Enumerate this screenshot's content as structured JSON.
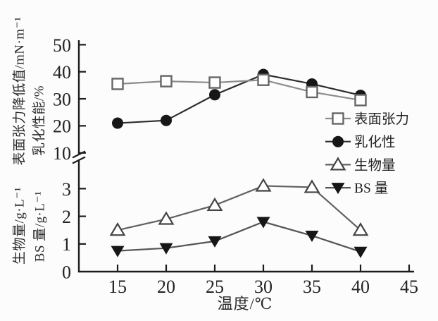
{
  "figure": {
    "background": "#fcfcfc",
    "axis_color": "#1c1c1c",
    "text_color": "#222222",
    "y_axis_labels": {
      "outer_top": "表面张力降低值/mN·m⁻¹",
      "inner_top": "乳化性能/%",
      "outer_bottom": "生物量/g·L⁻¹",
      "inner_bottom": "BS 量/g·L⁻¹"
    },
    "x_axis_label": "温度/℃"
  },
  "chart_data": {
    "type": "line",
    "title": "",
    "xlabel": "温度/℃",
    "ylabel_top": "表面张力降低值/mN·m⁻¹ ; 乳化性能/%",
    "ylabel_bottom": "生物量/g·L⁻¹ ; BS 量/g·L⁻¹",
    "x": [
      15,
      20,
      25,
      30,
      35,
      40
    ],
    "x_ticks": [
      15,
      20,
      25,
      30,
      35,
      40,
      45
    ],
    "x_range": [
      11,
      45.5
    ],
    "axis_break": true,
    "grid": false,
    "legend_position": "right-middle",
    "top_axis": {
      "ticks": [
        10,
        20,
        30,
        40,
        50
      ],
      "range": [
        10,
        50
      ]
    },
    "bottom_axis": {
      "ticks": [
        0,
        1,
        2,
        3
      ],
      "range": [
        0,
        3.3
      ]
    },
    "series": [
      {
        "id": "surface-tension",
        "name": "表面张力",
        "axis": "top",
        "marker": "square-open",
        "line_color": "#8c8c8c",
        "marker_color": "#666666",
        "values": [
          35.5,
          36.5,
          36,
          37,
          32.5,
          29.5
        ]
      },
      {
        "id": "emulsification",
        "name": "乳化性",
        "axis": "top",
        "marker": "circle-filled",
        "line_color": "#2e2e2e",
        "marker_color": "#171717",
        "values": [
          21,
          22,
          31.5,
          39,
          35.5,
          31.3
        ]
      },
      {
        "id": "biomass",
        "name": "生物量",
        "axis": "bottom",
        "marker": "triangle-up-open",
        "line_color": "#606060",
        "marker_color": "#444444",
        "values": [
          1.5,
          1.9,
          2.4,
          3.1,
          3.05,
          1.5
        ]
      },
      {
        "id": "bs-amount",
        "name": "BS 量",
        "axis": "bottom",
        "marker": "triangle-down-filled",
        "line_color": "#555555",
        "marker_color": "#161616",
        "values": [
          0.75,
          0.85,
          1.1,
          1.8,
          1.3,
          0.72
        ]
      }
    ]
  }
}
